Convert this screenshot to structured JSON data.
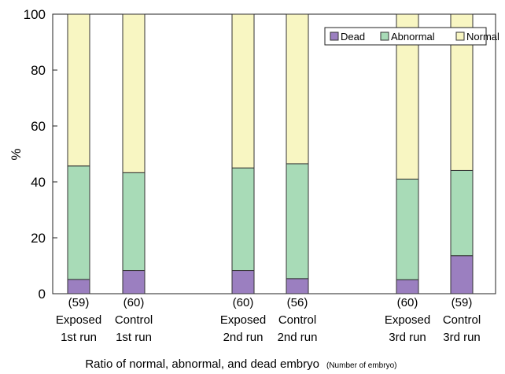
{
  "chart_data": {
    "type": "bar",
    "stacked": true,
    "ylabel": "%",
    "ylim": [
      0,
      100
    ],
    "yticks": [
      0,
      20,
      40,
      60,
      80,
      100
    ],
    "grid": false,
    "legend_position": "top-right",
    "xlabel": "Ratio of normal, abnormal, and dead embryo",
    "xlabel_note": "(Number of embryo)",
    "categories": [
      {
        "count": "(59)",
        "line1": "Exposed",
        "line2": "1st run"
      },
      {
        "count": "(60)",
        "line1": "Control",
        "line2": "1st run"
      },
      {
        "count": "(60)",
        "line1": "Exposed",
        "line2": "2nd run"
      },
      {
        "count": "(56)",
        "line1": "Control",
        "line2": "2nd run"
      },
      {
        "count": "(60)",
        "line1": "Exposed",
        "line2": "3rd run"
      },
      {
        "count": "(59)",
        "line1": "Control",
        "line2": "3rd run"
      }
    ],
    "series": [
      {
        "name": "Dead",
        "color": "#9b7fc0",
        "values": [
          5.1,
          8.3,
          8.3,
          5.4,
          5.0,
          13.6
        ]
      },
      {
        "name": "Abnormal",
        "color": "#a8dbb7",
        "values": [
          40.6,
          35.0,
          36.7,
          41.1,
          36.0,
          30.5
        ]
      },
      {
        "name": "Normal",
        "color": "#f8f6c2",
        "values": [
          54.3,
          56.7,
          55.0,
          53.5,
          59.0,
          55.9
        ]
      }
    ]
  }
}
